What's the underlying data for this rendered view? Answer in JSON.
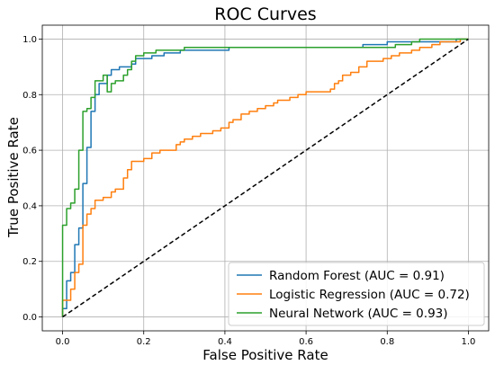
{
  "chart_data": {
    "type": "line",
    "title": "ROC Curves",
    "xlabel": "False Positive Rate",
    "ylabel": "True Positive Rate",
    "xlim": [
      -0.05,
      1.05
    ],
    "ylim": [
      -0.05,
      1.05
    ],
    "xticks": [
      "0.0",
      "0.2",
      "0.4",
      "0.6",
      "0.8",
      "1.0"
    ],
    "yticks": [
      "0.0",
      "0.2",
      "0.4",
      "0.6",
      "0.8",
      "1.0"
    ],
    "grid": true,
    "legend_position": "lower-right",
    "diagonal": {
      "x": [
        0,
        1
      ],
      "y": [
        0,
        1
      ],
      "color": "#000000",
      "style": "dashed"
    },
    "series": [
      {
        "name": "Random Forest (AUC = 0.91)",
        "color": "#1f77b4",
        "points": [
          [
            0.0,
            0.0
          ],
          [
            0.0,
            0.03
          ],
          [
            0.01,
            0.03
          ],
          [
            0.01,
            0.13
          ],
          [
            0.02,
            0.13
          ],
          [
            0.02,
            0.16
          ],
          [
            0.03,
            0.16
          ],
          [
            0.03,
            0.26
          ],
          [
            0.04,
            0.26
          ],
          [
            0.04,
            0.32
          ],
          [
            0.05,
            0.32
          ],
          [
            0.05,
            0.48
          ],
          [
            0.06,
            0.48
          ],
          [
            0.06,
            0.61
          ],
          [
            0.07,
            0.61
          ],
          [
            0.07,
            0.74
          ],
          [
            0.08,
            0.74
          ],
          [
            0.08,
            0.8
          ],
          [
            0.09,
            0.8
          ],
          [
            0.09,
            0.84
          ],
          [
            0.11,
            0.84
          ],
          [
            0.11,
            0.87
          ],
          [
            0.12,
            0.87
          ],
          [
            0.12,
            0.89
          ],
          [
            0.14,
            0.89
          ],
          [
            0.14,
            0.9
          ],
          [
            0.17,
            0.9
          ],
          [
            0.17,
            0.91
          ],
          [
            0.18,
            0.91
          ],
          [
            0.18,
            0.93
          ],
          [
            0.22,
            0.93
          ],
          [
            0.22,
            0.94
          ],
          [
            0.25,
            0.94
          ],
          [
            0.25,
            0.95
          ],
          [
            0.29,
            0.95
          ],
          [
            0.29,
            0.96
          ],
          [
            0.41,
            0.96
          ],
          [
            0.41,
            0.97
          ],
          [
            0.74,
            0.97
          ],
          [
            0.74,
            0.98
          ],
          [
            0.8,
            0.98
          ],
          [
            0.8,
            0.99
          ],
          [
            0.97,
            0.99
          ],
          [
            0.97,
            1.0
          ],
          [
            1.0,
            1.0
          ]
        ]
      },
      {
        "name": "Logistic Regression (AUC = 0.72)",
        "color": "#ff7f0e",
        "points": [
          [
            0.0,
            0.0
          ],
          [
            0.0,
            0.06
          ],
          [
            0.02,
            0.06
          ],
          [
            0.02,
            0.1
          ],
          [
            0.03,
            0.1
          ],
          [
            0.03,
            0.16
          ],
          [
            0.04,
            0.16
          ],
          [
            0.04,
            0.19
          ],
          [
            0.05,
            0.19
          ],
          [
            0.05,
            0.33
          ],
          [
            0.06,
            0.33
          ],
          [
            0.06,
            0.37
          ],
          [
            0.07,
            0.37
          ],
          [
            0.07,
            0.39
          ],
          [
            0.08,
            0.39
          ],
          [
            0.08,
            0.42
          ],
          [
            0.1,
            0.42
          ],
          [
            0.1,
            0.43
          ],
          [
            0.12,
            0.43
          ],
          [
            0.12,
            0.45
          ],
          [
            0.13,
            0.45
          ],
          [
            0.13,
            0.46
          ],
          [
            0.15,
            0.46
          ],
          [
            0.15,
            0.5
          ],
          [
            0.16,
            0.5
          ],
          [
            0.16,
            0.53
          ],
          [
            0.17,
            0.53
          ],
          [
            0.17,
            0.56
          ],
          [
            0.2,
            0.56
          ],
          [
            0.2,
            0.57
          ],
          [
            0.22,
            0.57
          ],
          [
            0.22,
            0.59
          ],
          [
            0.24,
            0.59
          ],
          [
            0.24,
            0.6
          ],
          [
            0.28,
            0.6
          ],
          [
            0.28,
            0.62
          ],
          [
            0.29,
            0.62
          ],
          [
            0.29,
            0.63
          ],
          [
            0.3,
            0.63
          ],
          [
            0.3,
            0.64
          ],
          [
            0.32,
            0.64
          ],
          [
            0.32,
            0.65
          ],
          [
            0.34,
            0.65
          ],
          [
            0.34,
            0.66
          ],
          [
            0.37,
            0.66
          ],
          [
            0.37,
            0.67
          ],
          [
            0.39,
            0.67
          ],
          [
            0.39,
            0.68
          ],
          [
            0.41,
            0.68
          ],
          [
            0.41,
            0.7
          ],
          [
            0.42,
            0.7
          ],
          [
            0.42,
            0.71
          ],
          [
            0.44,
            0.71
          ],
          [
            0.44,
            0.73
          ],
          [
            0.46,
            0.73
          ],
          [
            0.46,
            0.74
          ],
          [
            0.48,
            0.74
          ],
          [
            0.48,
            0.75
          ],
          [
            0.5,
            0.75
          ],
          [
            0.5,
            0.76
          ],
          [
            0.52,
            0.76
          ],
          [
            0.52,
            0.77
          ],
          [
            0.53,
            0.77
          ],
          [
            0.53,
            0.78
          ],
          [
            0.56,
            0.78
          ],
          [
            0.56,
            0.79
          ],
          [
            0.58,
            0.79
          ],
          [
            0.58,
            0.8
          ],
          [
            0.6,
            0.8
          ],
          [
            0.6,
            0.81
          ],
          [
            0.66,
            0.81
          ],
          [
            0.66,
            0.82
          ],
          [
            0.67,
            0.82
          ],
          [
            0.67,
            0.84
          ],
          [
            0.68,
            0.84
          ],
          [
            0.68,
            0.85
          ],
          [
            0.69,
            0.85
          ],
          [
            0.69,
            0.87
          ],
          [
            0.71,
            0.87
          ],
          [
            0.71,
            0.88
          ],
          [
            0.73,
            0.88
          ],
          [
            0.73,
            0.9
          ],
          [
            0.75,
            0.9
          ],
          [
            0.75,
            0.92
          ],
          [
            0.79,
            0.92
          ],
          [
            0.79,
            0.93
          ],
          [
            0.81,
            0.93
          ],
          [
            0.81,
            0.94
          ],
          [
            0.83,
            0.94
          ],
          [
            0.83,
            0.95
          ],
          [
            0.86,
            0.95
          ],
          [
            0.86,
            0.96
          ],
          [
            0.88,
            0.96
          ],
          [
            0.88,
            0.97
          ],
          [
            0.91,
            0.97
          ],
          [
            0.91,
            0.98
          ],
          [
            0.93,
            0.98
          ],
          [
            0.93,
            0.99
          ],
          [
            0.98,
            0.99
          ],
          [
            0.98,
            1.0
          ],
          [
            1.0,
            1.0
          ]
        ]
      },
      {
        "name": "Neural Network (AUC = 0.93)",
        "color": "#2ca02c",
        "points": [
          [
            0.0,
            0.0
          ],
          [
            0.0,
            0.33
          ],
          [
            0.01,
            0.33
          ],
          [
            0.01,
            0.39
          ],
          [
            0.02,
            0.39
          ],
          [
            0.02,
            0.41
          ],
          [
            0.03,
            0.41
          ],
          [
            0.03,
            0.46
          ],
          [
            0.04,
            0.46
          ],
          [
            0.04,
            0.6
          ],
          [
            0.05,
            0.6
          ],
          [
            0.05,
            0.74
          ],
          [
            0.06,
            0.74
          ],
          [
            0.06,
            0.75
          ],
          [
            0.07,
            0.75
          ],
          [
            0.07,
            0.79
          ],
          [
            0.08,
            0.79
          ],
          [
            0.08,
            0.85
          ],
          [
            0.1,
            0.85
          ],
          [
            0.1,
            0.87
          ],
          [
            0.11,
            0.87
          ],
          [
            0.11,
            0.81
          ],
          [
            0.12,
            0.81
          ],
          [
            0.12,
            0.84
          ],
          [
            0.13,
            0.84
          ],
          [
            0.13,
            0.85
          ],
          [
            0.15,
            0.85
          ],
          [
            0.15,
            0.87
          ],
          [
            0.16,
            0.87
          ],
          [
            0.16,
            0.89
          ],
          [
            0.17,
            0.89
          ],
          [
            0.17,
            0.92
          ],
          [
            0.18,
            0.92
          ],
          [
            0.18,
            0.94
          ],
          [
            0.2,
            0.94
          ],
          [
            0.2,
            0.95
          ],
          [
            0.23,
            0.95
          ],
          [
            0.23,
            0.96
          ],
          [
            0.3,
            0.96
          ],
          [
            0.3,
            0.97
          ],
          [
            0.82,
            0.97
          ],
          [
            0.82,
            0.98
          ],
          [
            0.86,
            0.98
          ],
          [
            0.86,
            0.99
          ],
          [
            0.88,
            0.99
          ],
          [
            0.88,
            1.0
          ],
          [
            1.0,
            1.0
          ]
        ]
      }
    ]
  }
}
